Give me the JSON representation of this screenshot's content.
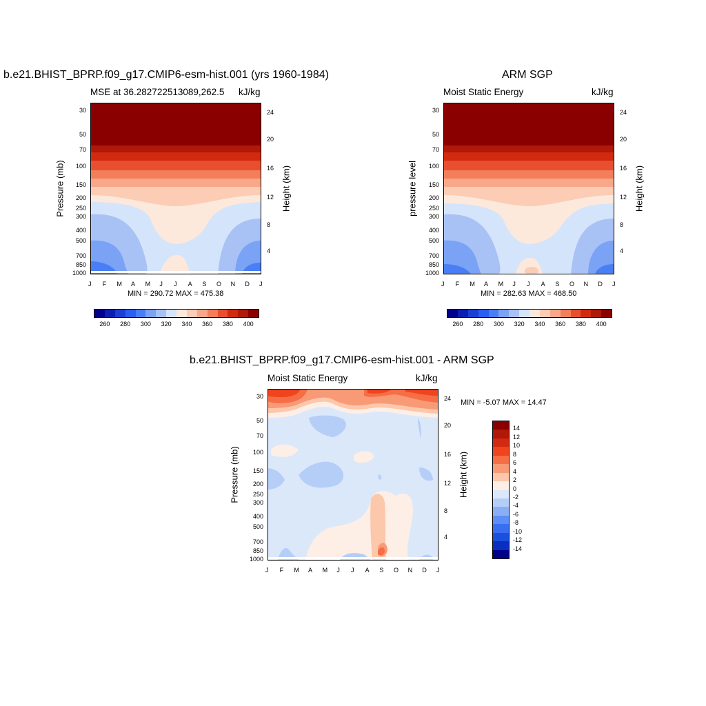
{
  "chart_data": [
    {
      "type": "heatmap",
      "title": "b.e21.BHIST_BPRP.f09_g17.CMIP6-esm-hist.001 (yrs 1960-1984)",
      "left_string": "MSE at 36.282722513089,262.5",
      "right_string": "kJ/kg",
      "ylabel": "Pressure (mb)",
      "y2label": "Height (km)",
      "x_ticks": [
        "J",
        "F",
        "M",
        "A",
        "M",
        "J",
        "J",
        "A",
        "S",
        "O",
        "N",
        "D",
        "J"
      ],
      "y_ticks": [
        "30",
        "50",
        "70",
        "100",
        "150",
        "200",
        "250",
        "300",
        "400",
        "500",
        "700",
        "850",
        "1000"
      ],
      "y2_ticks": [
        "24",
        "20",
        "16",
        "12",
        "8",
        "4"
      ],
      "min": 290.72,
      "max": 475.38,
      "min_max_text": "MIN = 290.72 MAX = 475.38",
      "colorbar_labels": [
        "260",
        "280",
        "300",
        "320",
        "340",
        "360",
        "380",
        "400"
      ]
    },
    {
      "type": "heatmap",
      "title": "ARM SGP",
      "left_string": "Moist Static Energy",
      "right_string": "kJ/kg",
      "ylabel": "pressure level",
      "y2label": "Height (km)",
      "x_ticks": [
        "J",
        "F",
        "M",
        "A",
        "M",
        "J",
        "J",
        "A",
        "S",
        "O",
        "N",
        "D",
        "J"
      ],
      "y_ticks": [
        "30",
        "50",
        "70",
        "100",
        "150",
        "200",
        "250",
        "300",
        "400",
        "500",
        "700",
        "850",
        "1000"
      ],
      "y2_ticks": [
        "24",
        "20",
        "16",
        "12",
        "8",
        "4"
      ],
      "min": 282.63,
      "max": 468.5,
      "min_max_text": "MIN = 282.63 MAX = 468.50",
      "colorbar_labels": [
        "260",
        "280",
        "300",
        "320",
        "340",
        "360",
        "380",
        "400"
      ]
    },
    {
      "type": "heatmap",
      "title": "b.e21.BHIST_BPRP.f09_g17.CMIP6-esm-hist.001 - ARM SGP",
      "left_string": "Moist Static Energy",
      "right_string": "kJ/kg",
      "ylabel": "Pressure (mb)",
      "y2label": "Height (km)",
      "x_ticks": [
        "J",
        "F",
        "M",
        "A",
        "M",
        "J",
        "J",
        "A",
        "S",
        "O",
        "N",
        "D",
        "J"
      ],
      "y_ticks": [
        "30",
        "50",
        "70",
        "100",
        "150",
        "200",
        "250",
        "300",
        "400",
        "500",
        "700",
        "850",
        "1000"
      ],
      "y2_ticks": [
        "24",
        "20",
        "16",
        "12",
        "8",
        "4"
      ],
      "min": -5.07,
      "max": 14.47,
      "min_max_text": "MIN =  -5.07 MAX =  14.47",
      "colorbar_labels": [
        "14",
        "12",
        "10",
        "8",
        "6",
        "4",
        "2",
        "0",
        "-2",
        "-4",
        "-6",
        "-8",
        "-10",
        "-12",
        "-14"
      ]
    }
  ],
  "colors": {
    "abs_scale": [
      "#00008a",
      "#0a1fb0",
      "#1a3fd4",
      "#2a5ef0",
      "#4a7ef5",
      "#7aa2f5",
      "#a8c2f5",
      "#d4e4fa",
      "#fde8dc",
      "#fcccb4",
      "#f8a888",
      "#f27e5a",
      "#e84f2e",
      "#d22a10",
      "#b01808",
      "#8a0000"
    ],
    "diff_scale": [
      "#8a0000",
      "#b01808",
      "#d22a10",
      "#f0441e",
      "#f56e46",
      "#f89a76",
      "#fcc7aa",
      "#fdeee6",
      "#dbe8fa",
      "#b5cef8",
      "#8aaef5",
      "#5e8ef5",
      "#3a6ef0",
      "#1a4fe0",
      "#0a2ec0",
      "#00008a"
    ]
  }
}
